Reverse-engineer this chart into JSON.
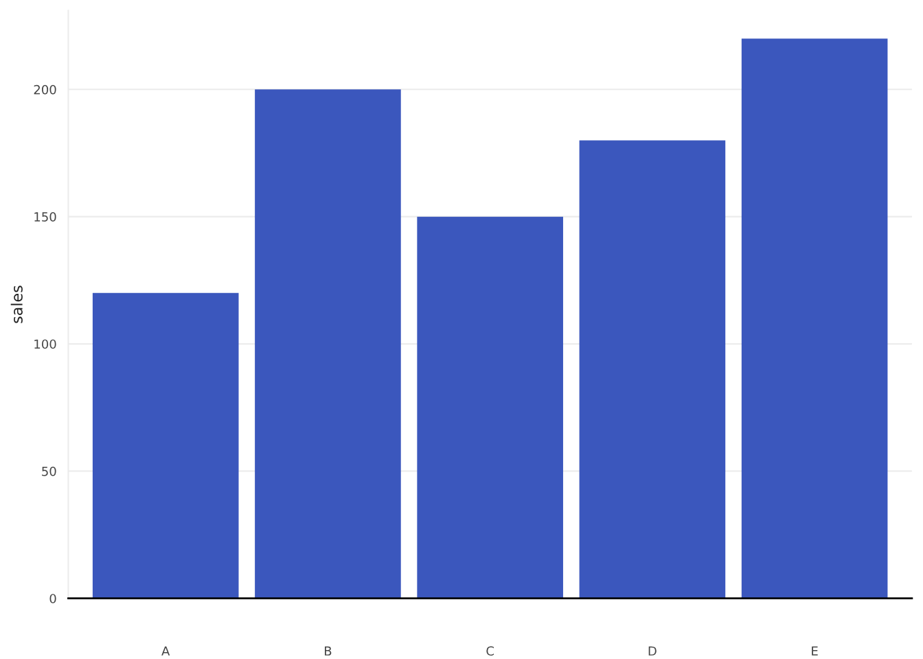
{
  "chart_data": {
    "type": "bar",
    "ylabel": "sales",
    "categories": [
      "A",
      "B",
      "C",
      "D",
      "E"
    ],
    "values": [
      120,
      200,
      150,
      180,
      220
    ],
    "color": "#3b57bd",
    "ylim": [
      0,
      231
    ],
    "yticks": [
      0,
      50,
      100,
      150,
      200
    ],
    "grid": "y"
  }
}
